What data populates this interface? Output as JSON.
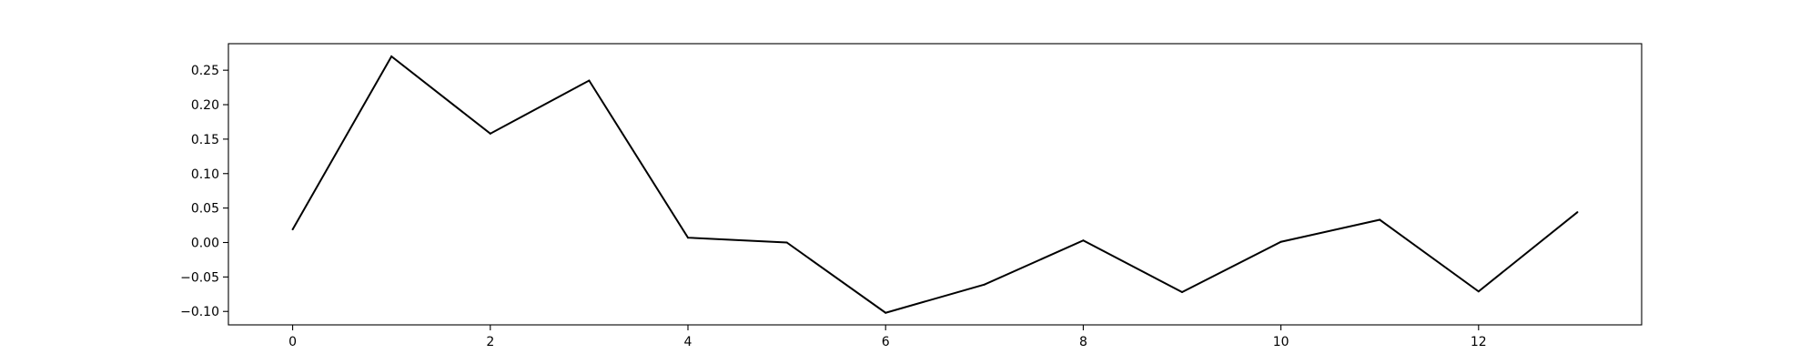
{
  "chart_data": {
    "type": "line",
    "title": "",
    "xlabel": "",
    "ylabel": "",
    "xlim": [
      -0.65,
      13.65
    ],
    "ylim": [
      -0.1195,
      0.2885
    ],
    "x_ticks": [
      0,
      2,
      4,
      6,
      8,
      10,
      12
    ],
    "x_tick_labels": [
      "0",
      "2",
      "4",
      "6",
      "8",
      "10",
      "12"
    ],
    "y_ticks": [
      -0.1,
      -0.05,
      0.0,
      0.05,
      0.1,
      0.15,
      0.2,
      0.25
    ],
    "y_tick_labels": [
      "−0.10",
      "−0.05",
      "0.00",
      "0.05",
      "0.10",
      "0.15",
      "0.20",
      "0.25"
    ],
    "grid": false,
    "series": [
      {
        "color": "#000000",
        "x": [
          0,
          1,
          2,
          3,
          4,
          5,
          6,
          7,
          8,
          9,
          10,
          11,
          12,
          13
        ],
        "values": [
          0.019,
          0.27,
          0.158,
          0.235,
          0.007,
          0.0,
          -0.102,
          -0.061,
          0.003,
          -0.072,
          0.001,
          0.033,
          -0.071,
          0.044
        ]
      }
    ]
  }
}
